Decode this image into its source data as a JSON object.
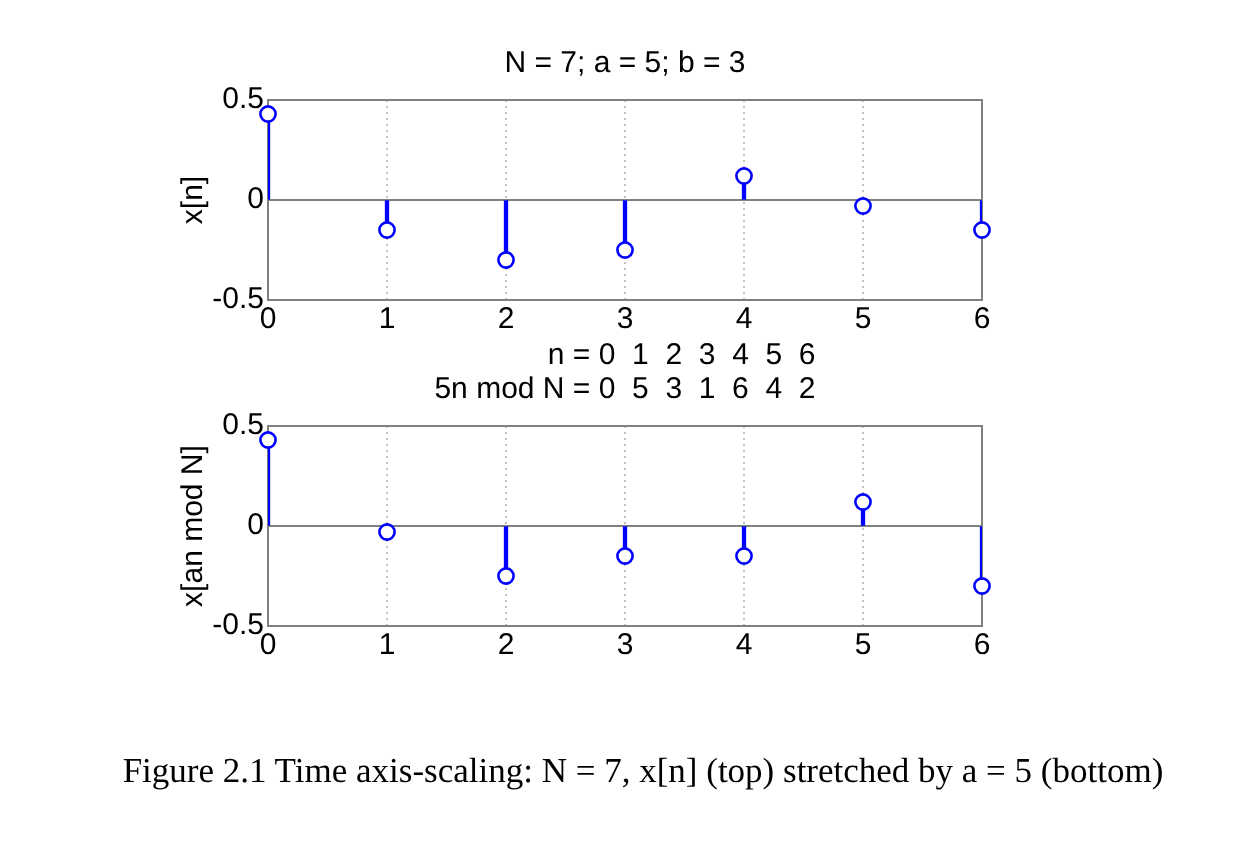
{
  "chart_data": [
    {
      "type": "lollipop",
      "title": "N = 7; a = 5; b = 3",
      "ylabel": "x[n]",
      "x": [
        0,
        1,
        2,
        3,
        4,
        5,
        6
      ],
      "values": [
        0.43,
        -0.15,
        -0.3,
        -0.25,
        0.12,
        -0.03,
        -0.15
      ],
      "color": "#0000ff",
      "xlim": [
        0,
        6
      ],
      "xticks": [
        0,
        1,
        2,
        3,
        4,
        5,
        6
      ],
      "ylim": [
        -0.5,
        0.5
      ],
      "yticks": [
        -0.5,
        0,
        0.5
      ],
      "grid": true,
      "marker": "circle"
    },
    {
      "type": "lollipop",
      "title": "n = 0  1  2  3  4  5  6",
      "subtitle": "5n mod N = 0  5  3  1  6  4  2",
      "ylabel": "x[an mod N]",
      "x": [
        0,
        1,
        2,
        3,
        4,
        5,
        6
      ],
      "values": [
        0.43,
        -0.03,
        -0.25,
        -0.15,
        -0.15,
        0.12,
        -0.3
      ],
      "color": "#0000ff",
      "xlim": [
        0,
        6
      ],
      "xticks": [
        0,
        1,
        2,
        3,
        4,
        5,
        6
      ],
      "ylim": [
        -0.5,
        0.5
      ],
      "yticks": [
        -0.5,
        0,
        0.5
      ],
      "grid": true,
      "marker": "circle",
      "annotations": [
        "Figure 2.1 Time axis-scaling: N = 7, x[n] (top) stretched by a = 5 (bottom)"
      ]
    }
  ]
}
